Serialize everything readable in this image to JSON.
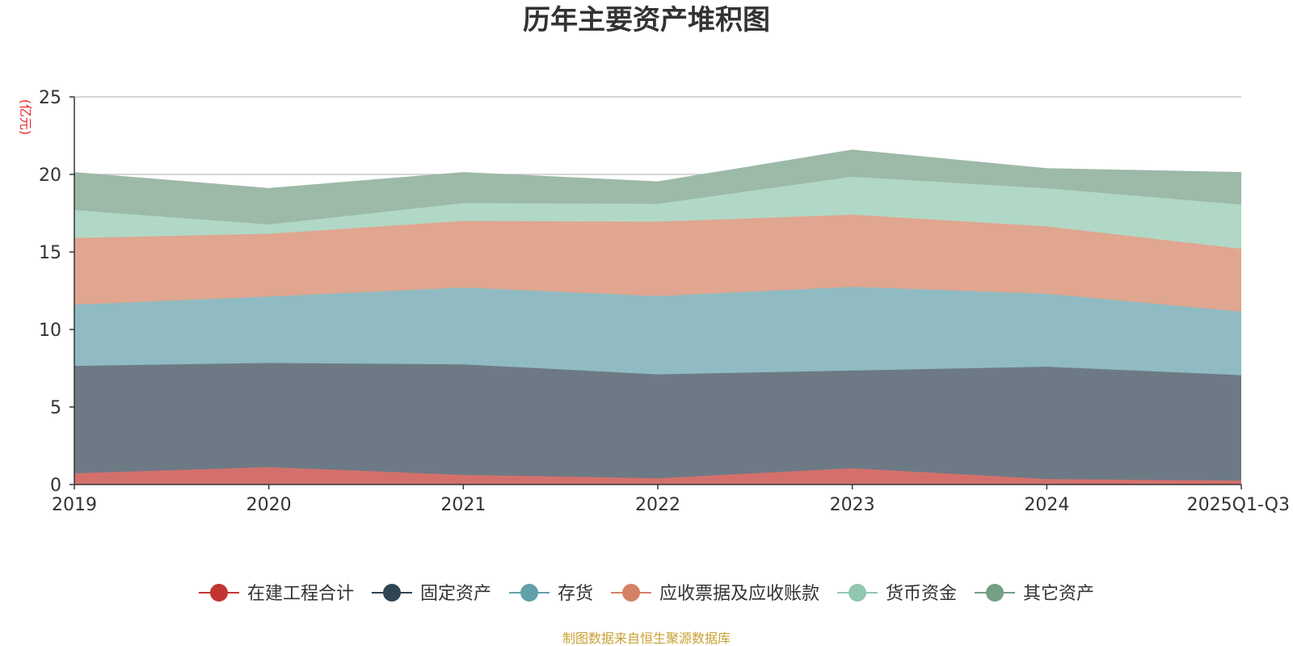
{
  "chart_data": {
    "type": "area",
    "stacked": true,
    "title": "历年主要资产堆积图",
    "ylabel": "(亿元)",
    "ylim": [
      0,
      25
    ],
    "yticks": [
      0,
      5,
      10,
      15,
      20,
      25
    ],
    "categories": [
      "2019",
      "2020",
      "2021",
      "2022",
      "2023",
      "2024",
      "2025Q1-Q3"
    ],
    "grid": true,
    "legend_position": "bottom",
    "series": [
      {
        "name": "在建工程合计",
        "color": "#c23531",
        "area_color": "#d4706c",
        "values": [
          0.72,
          1.12,
          0.62,
          0.4,
          1.05,
          0.35,
          0.25
        ]
      },
      {
        "name": "固定资产",
        "color": "#2f4554",
        "area_color": "#6d7a85",
        "values": [
          6.93,
          6.72,
          7.13,
          6.7,
          6.3,
          7.25,
          6.8
        ]
      },
      {
        "name": "存货",
        "color": "#61a0a8",
        "area_color": "#90bbc2",
        "values": [
          3.95,
          4.28,
          4.95,
          5.05,
          5.4,
          4.7,
          4.1
        ]
      },
      {
        "name": "应收票据及应收账款",
        "color": "#d48265",
        "area_color": "#e0a690",
        "values": [
          4.3,
          4.05,
          4.3,
          4.8,
          4.65,
          4.35,
          4.05
        ]
      },
      {
        "name": "货币资金",
        "color": "#91c7ae",
        "area_color": "#b1d8c6",
        "values": [
          1.8,
          0.6,
          1.15,
          1.15,
          2.45,
          2.45,
          2.85
        ]
      },
      {
        "name": "其它资产",
        "color": "#749f83",
        "area_color": "#9db9a7",
        "values": [
          2.4,
          2.3,
          1.95,
          1.4,
          1.7,
          1.25,
          2.05
        ]
      }
    ],
    "source": "制图数据来自恒生聚源数据库"
  }
}
